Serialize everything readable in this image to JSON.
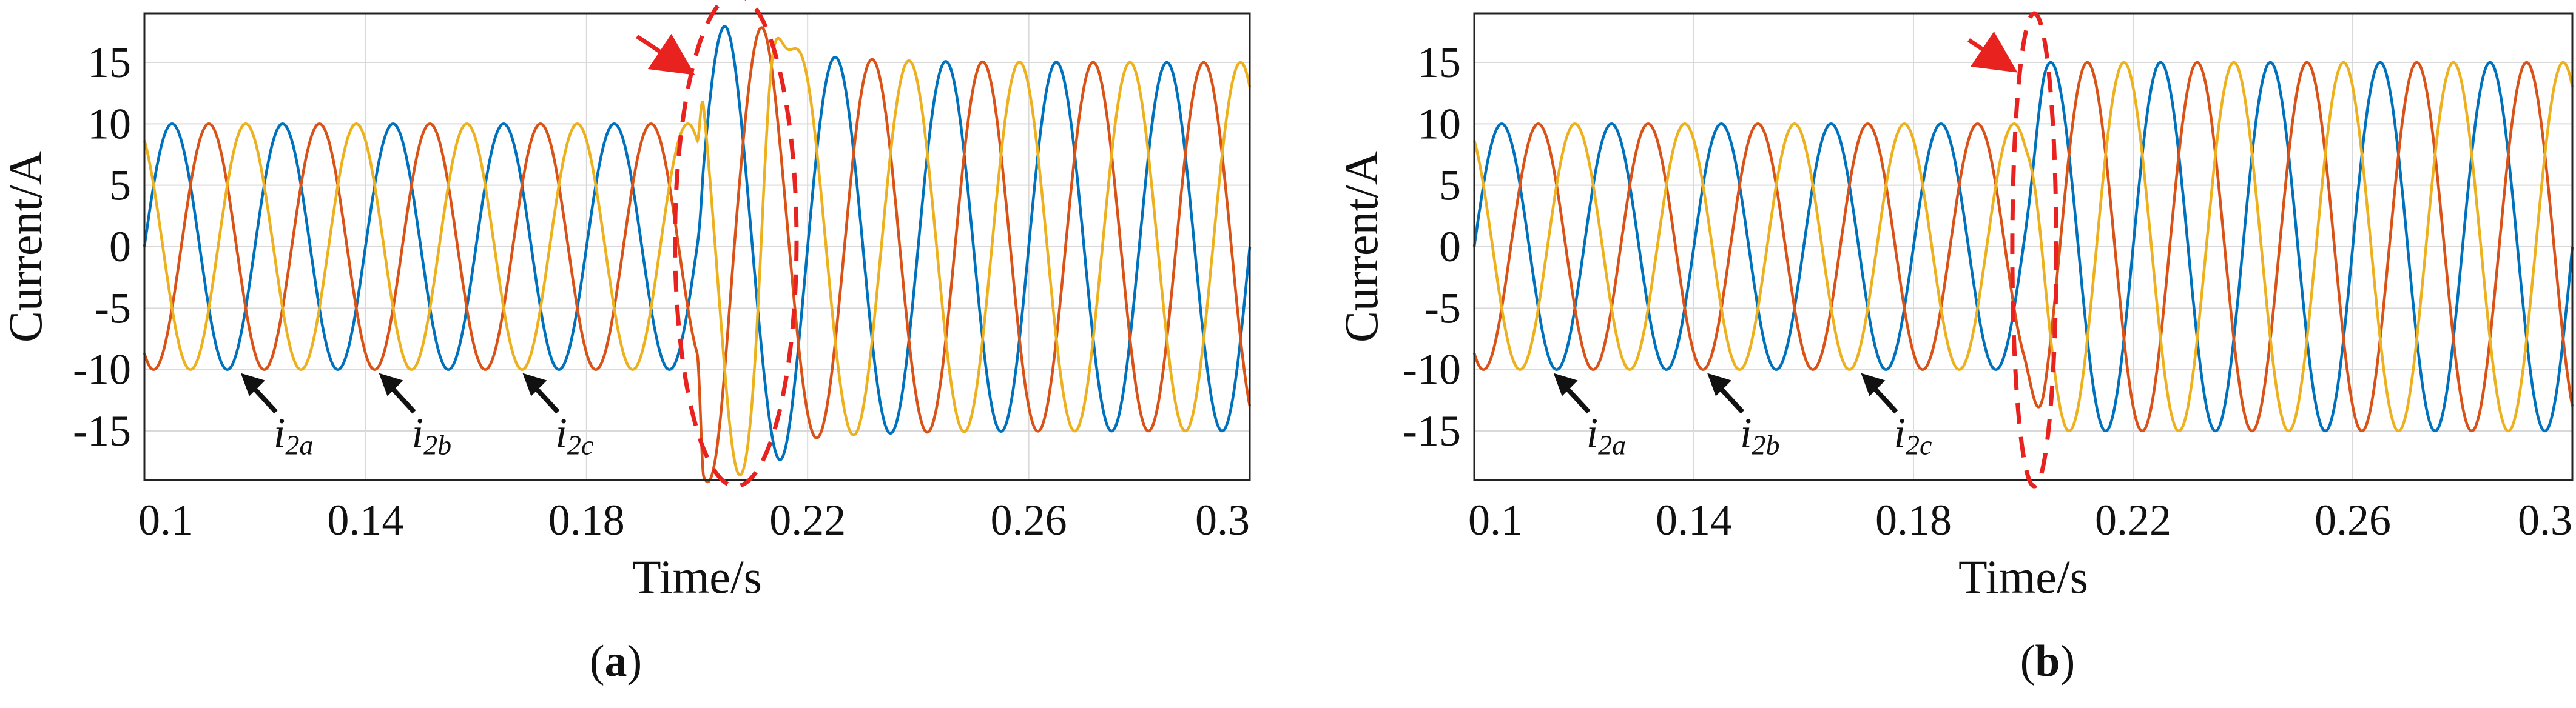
{
  "chart_data": [
    {
      "type": "line",
      "caption_letter": "a",
      "xlabel": "Time/s",
      "ylabel": "Current/A",
      "xlim": [
        0.1,
        0.3
      ],
      "ylim": [
        -19,
        19
      ],
      "xticks": [
        0.1,
        0.14,
        0.18,
        0.22,
        0.26,
        0.3
      ],
      "xtick_labels": [
        "0.1",
        "0.14",
        "0.18",
        "0.22",
        "0.26",
        "0.3"
      ],
      "yticks": [
        -15,
        -10,
        -5,
        0,
        5,
        10,
        15
      ],
      "ytick_labels": [
        "-15",
        "-10",
        "-5",
        "0",
        "5",
        "10",
        "15"
      ],
      "grid": true,
      "frequency_hz": 50,
      "step_time": 0.2,
      "series": [
        {
          "name": "i2a",
          "phase_deg": 0,
          "color": "#0072BD",
          "amplitude_before": 10,
          "transient": {
            "peaks": [
              0.205,
              0.215
            ],
            "values": [
              18,
              -17.5
            ]
          },
          "amplitude_after": 15
        },
        {
          "name": "i2b",
          "phase_deg": -120,
          "color": "#D95319",
          "amplitude_before": 10,
          "transient": {
            "peaks": [
              0.2033,
              0.2117
            ],
            "values": [
              -17.5,
              18
            ]
          },
          "amplitude_after": 15
        },
        {
          "name": "i2c",
          "phase_deg": 120,
          "color": "#EDB120",
          "amplitude_before": 10,
          "transient": {
            "peaks": [
              0.2067,
              0.2133
            ],
            "values": [
              -17.5,
              15.5
            ]
          },
          "amplitude_after": 15
        }
      ],
      "annotations": [
        {
          "label": "i",
          "sub": "2a",
          "x": 0.117,
          "y": -10
        },
        {
          "label": "i",
          "sub": "2b",
          "x": 0.142,
          "y": -10
        },
        {
          "label": "i",
          "sub": "2c",
          "x": 0.168,
          "y": -10
        }
      ],
      "highlight_ellipse": {
        "x_range": [
          0.196,
          0.218
        ],
        "y_range": [
          -19.5,
          20.5
        ],
        "color": "#E8231F"
      }
    },
    {
      "type": "line",
      "caption_letter": "b",
      "xlabel": "Time/s",
      "ylabel": "Current/A",
      "xlim": [
        0.1,
        0.3
      ],
      "ylim": [
        -19,
        19
      ],
      "xticks": [
        0.1,
        0.14,
        0.18,
        0.22,
        0.26,
        0.3
      ],
      "xtick_labels": [
        "0.1",
        "0.14",
        "0.18",
        "0.22",
        "0.26",
        "0.3"
      ],
      "yticks": [
        -15,
        -10,
        -5,
        0,
        5,
        10,
        15
      ],
      "ytick_labels": [
        "-15",
        "-10",
        "-5",
        "0",
        "5",
        "10",
        "15"
      ],
      "grid": true,
      "frequency_hz": 50,
      "step_time": 0.2,
      "series": [
        {
          "name": "i2a",
          "phase_deg": 0,
          "color": "#0072BD",
          "amplitude_before": 10,
          "amplitude_after": 15
        },
        {
          "name": "i2b",
          "phase_deg": -120,
          "color": "#D95319",
          "amplitude_before": 10,
          "amplitude_after": 15
        },
        {
          "name": "i2c",
          "phase_deg": 120,
          "color": "#EDB120",
          "amplitude_before": 10,
          "amplitude_after": 15
        }
      ],
      "annotations": [
        {
          "label": "i",
          "sub": "2a",
          "x": 0.114,
          "y": -10
        },
        {
          "label": "i",
          "sub": "2b",
          "x": 0.142,
          "y": -10
        },
        {
          "label": "i",
          "sub": "2c",
          "x": 0.17,
          "y": -10
        }
      ],
      "highlight_ellipse": {
        "x_range": [
          0.198,
          0.206
        ],
        "y_range": [
          -19.5,
          19
        ],
        "color": "#E8231F"
      }
    }
  ]
}
